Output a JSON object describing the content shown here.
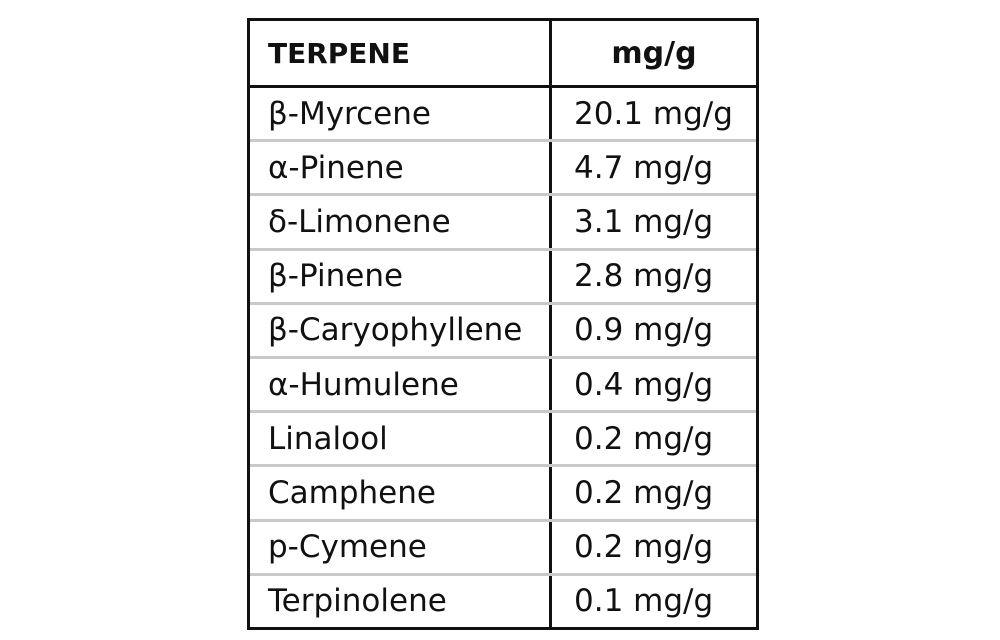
{
  "table": {
    "header": {
      "terpene": "TERPENE",
      "amount": "mg/g"
    },
    "rows": [
      {
        "terpene": "β-Myrcene",
        "amount": "20.1 mg/g"
      },
      {
        "terpene": "α-Pinene",
        "amount": "4.7 mg/g"
      },
      {
        "terpene": "δ-Limonene",
        "amount": "3.1 mg/g"
      },
      {
        "terpene": "β-Pinene",
        "amount": "2.8 mg/g"
      },
      {
        "terpene": "β-Caryophyllene",
        "amount": "0.9 mg/g"
      },
      {
        "terpene": "α-Humulene",
        "amount": "0.4 mg/g"
      },
      {
        "terpene": "Linalool",
        "amount": "0.2 mg/g"
      },
      {
        "terpene": "Camphene",
        "amount": "0.2 mg/g"
      },
      {
        "terpene": "p-Cymene",
        "amount": "0.2 mg/g"
      },
      {
        "terpene": "Terpinolene",
        "amount": "0.1 mg/g"
      }
    ]
  }
}
